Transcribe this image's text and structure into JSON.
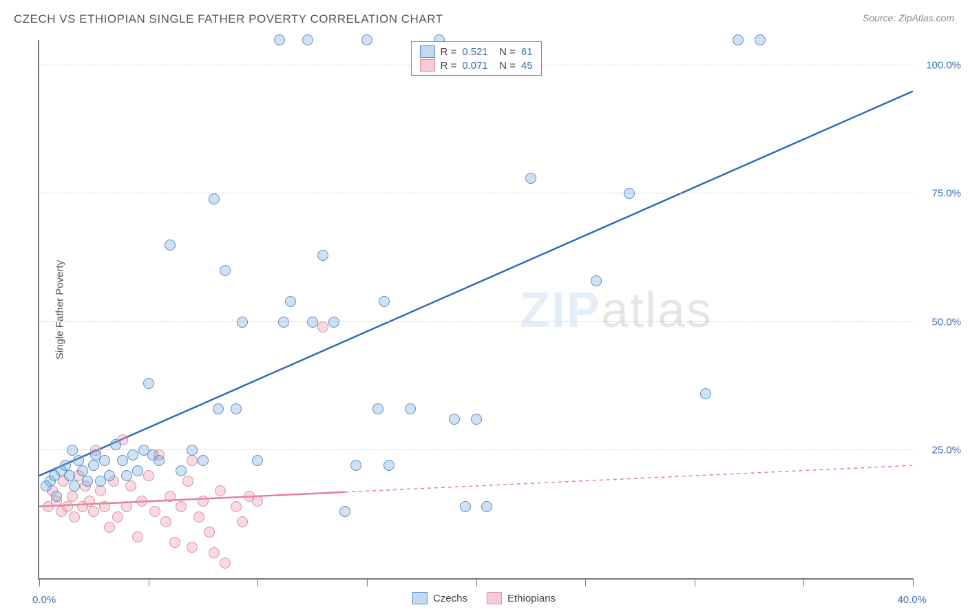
{
  "title": "CZECH VS ETHIOPIAN SINGLE FATHER POVERTY CORRELATION CHART",
  "source": "Source: ZipAtlas.com",
  "y_axis_label": "Single Father Poverty",
  "watermark_bold": "ZIP",
  "watermark_thin": "atlas",
  "chart": {
    "type": "scatter",
    "xlim": [
      0,
      40
    ],
    "ylim": [
      0,
      105
    ],
    "x_ticks": [
      0,
      5,
      10,
      15,
      20,
      25,
      30,
      35,
      40
    ],
    "y_gridlines": [
      25,
      50,
      75,
      100
    ],
    "y_labels": [
      "25.0%",
      "50.0%",
      "75.0%",
      "100.0%"
    ],
    "x_labels": {
      "min": "0.0%",
      "max": "40.0%"
    },
    "background_color": "#ffffff",
    "grid_color": "#cccccc",
    "point_radius": 8,
    "colors": {
      "czech_fill": "rgba(120,170,220,0.35)",
      "czech_stroke": "#5a8fc8",
      "czech_line": "#2e6bbd",
      "ethiopian_fill": "rgba(240,150,170,0.35)",
      "ethiopian_stroke": "#e08ca0",
      "ethiopian_line": "#e57f99",
      "axis_text": "#3b6fb5"
    },
    "trend_lines": {
      "czech": {
        "x1": 0,
        "y1": 20,
        "x2": 40,
        "y2": 95,
        "solid_until": 40
      },
      "ethiopian": {
        "x1": 0,
        "y1": 14,
        "x2": 40,
        "y2": 22,
        "solid_until": 14
      }
    },
    "series": {
      "czechs": {
        "label": "Czechs",
        "R": "0.521",
        "N": "61",
        "points": [
          [
            0.3,
            18
          ],
          [
            0.5,
            19
          ],
          [
            0.7,
            20
          ],
          [
            0.8,
            16
          ],
          [
            1.0,
            21
          ],
          [
            1.2,
            22
          ],
          [
            1.4,
            20
          ],
          [
            1.5,
            25
          ],
          [
            1.6,
            18
          ],
          [
            1.8,
            23
          ],
          [
            2.0,
            21
          ],
          [
            2.2,
            19
          ],
          [
            2.5,
            22
          ],
          [
            2.6,
            24
          ],
          [
            2.8,
            19
          ],
          [
            3.0,
            23
          ],
          [
            3.2,
            20
          ],
          [
            3.5,
            26
          ],
          [
            3.8,
            23
          ],
          [
            4.0,
            20
          ],
          [
            4.3,
            24
          ],
          [
            4.5,
            21
          ],
          [
            4.8,
            25
          ],
          [
            5.0,
            38
          ],
          [
            5.2,
            24
          ],
          [
            5.5,
            23
          ],
          [
            6.0,
            65
          ],
          [
            6.5,
            21
          ],
          [
            7.0,
            25
          ],
          [
            7.5,
            23
          ],
          [
            8.0,
            74
          ],
          [
            8.2,
            33
          ],
          [
            8.5,
            60
          ],
          [
            9.0,
            33
          ],
          [
            9.3,
            50
          ],
          [
            10.0,
            23
          ],
          [
            11.0,
            105
          ],
          [
            11.2,
            50
          ],
          [
            11.5,
            54
          ],
          [
            12.3,
            105
          ],
          [
            12.5,
            50
          ],
          [
            13.0,
            63
          ],
          [
            13.5,
            50
          ],
          [
            14.0,
            13
          ],
          [
            14.5,
            22
          ],
          [
            15.0,
            105
          ],
          [
            15.5,
            33
          ],
          [
            15.8,
            54
          ],
          [
            16.0,
            22
          ],
          [
            17.0,
            33
          ],
          [
            18.3,
            105
          ],
          [
            19.0,
            31
          ],
          [
            19.5,
            14
          ],
          [
            20.0,
            31
          ],
          [
            20.5,
            14
          ],
          [
            22.5,
            78
          ],
          [
            25.5,
            58
          ],
          [
            27.0,
            75
          ],
          [
            30.5,
            36
          ],
          [
            32.0,
            105
          ],
          [
            33.0,
            105
          ]
        ]
      },
      "ethiopians": {
        "label": "Ethiopians",
        "R": "0.071",
        "N": "45",
        "points": [
          [
            0.4,
            14
          ],
          [
            0.6,
            17
          ],
          [
            0.8,
            15
          ],
          [
            1.0,
            13
          ],
          [
            1.1,
            19
          ],
          [
            1.3,
            14
          ],
          [
            1.5,
            16
          ],
          [
            1.6,
            12
          ],
          [
            1.8,
            20
          ],
          [
            2.0,
            14
          ],
          [
            2.1,
            18
          ],
          [
            2.3,
            15
          ],
          [
            2.5,
            13
          ],
          [
            2.6,
            25
          ],
          [
            2.8,
            17
          ],
          [
            3.0,
            14
          ],
          [
            3.2,
            10
          ],
          [
            3.4,
            19
          ],
          [
            3.6,
            12
          ],
          [
            3.8,
            27
          ],
          [
            4.0,
            14
          ],
          [
            4.2,
            18
          ],
          [
            4.5,
            8
          ],
          [
            4.7,
            15
          ],
          [
            5.0,
            20
          ],
          [
            5.3,
            13
          ],
          [
            5.5,
            24
          ],
          [
            5.8,
            11
          ],
          [
            6.0,
            16
          ],
          [
            6.2,
            7
          ],
          [
            6.5,
            14
          ],
          [
            6.8,
            19
          ],
          [
            7.0,
            6
          ],
          [
            7.3,
            12
          ],
          [
            7.5,
            15
          ],
          [
            7.8,
            9
          ],
          [
            8.0,
            5
          ],
          [
            8.3,
            17
          ],
          [
            8.5,
            3
          ],
          [
            9.0,
            14
          ],
          [
            9.3,
            11
          ],
          [
            9.6,
            16
          ],
          [
            10.0,
            15
          ],
          [
            13.0,
            49
          ],
          [
            7.0,
            23
          ]
        ]
      }
    }
  },
  "legend_bottom": [
    {
      "swatch": "blue",
      "label": "Czechs"
    },
    {
      "swatch": "pink",
      "label": "Ethiopians"
    }
  ]
}
